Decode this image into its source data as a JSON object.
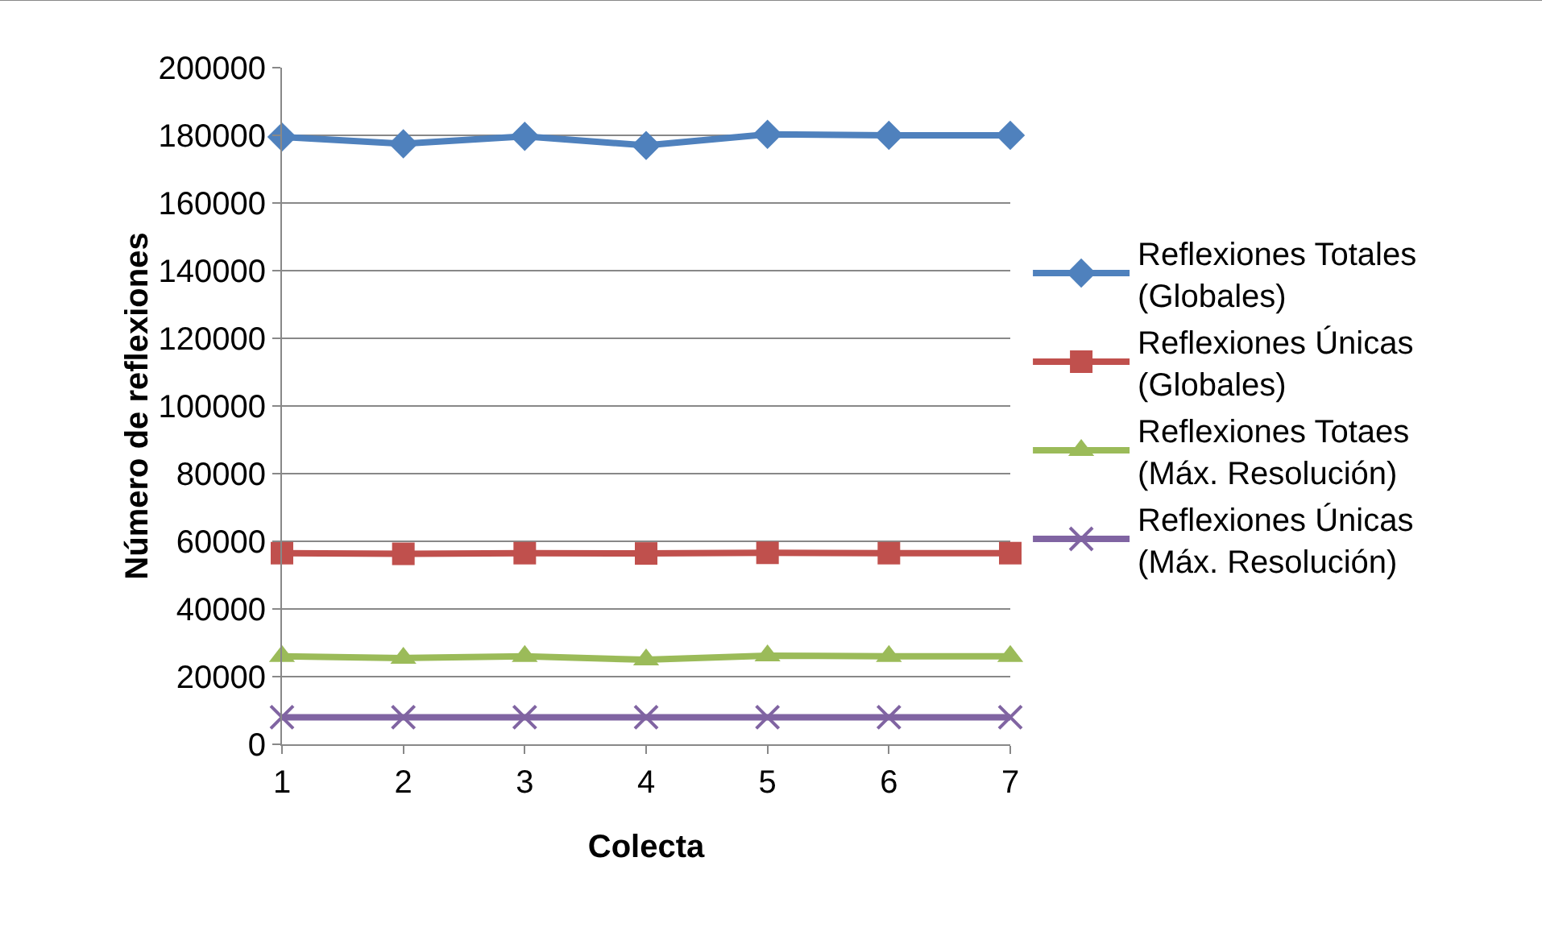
{
  "chart_data": {
    "type": "line",
    "xlabel": "Colecta",
    "ylabel": "Número de reflexiones",
    "x": [
      1,
      2,
      3,
      4,
      5,
      6,
      7
    ],
    "xlim": [
      1,
      7
    ],
    "xticks": [
      1,
      2,
      3,
      4,
      5,
      6,
      7
    ],
    "ylim": [
      0,
      200000
    ],
    "yticks": [
      0,
      20000,
      40000,
      60000,
      80000,
      100000,
      120000,
      140000,
      160000,
      180000,
      200000
    ],
    "grid": "y",
    "legend": "right",
    "line_style": "solid",
    "series": [
      {
        "name": "Reflexiones Totales (Globales)",
        "color": "#4f81bd",
        "marker": "diamond",
        "values": [
          179500,
          177500,
          179700,
          177000,
          180300,
          180000,
          180000
        ]
      },
      {
        "name": "Reflexiones Únicas (Globales)",
        "color": "#c0504d",
        "marker": "square",
        "values": [
          56500,
          56300,
          56500,
          56400,
          56600,
          56500,
          56500
        ]
      },
      {
        "name": "Reflexiones Totaes (Máx. Resolución)",
        "color": "#9bbb59",
        "marker": "triangle",
        "values": [
          26000,
          25500,
          26000,
          25000,
          26200,
          26000,
          26000
        ]
      },
      {
        "name": "Reflexiones Únicas (Máx. Resolución)",
        "color": "#8064a2",
        "marker": "cross",
        "values": [
          8000,
          8000,
          8000,
          8000,
          8000,
          8000,
          8000
        ]
      }
    ]
  }
}
